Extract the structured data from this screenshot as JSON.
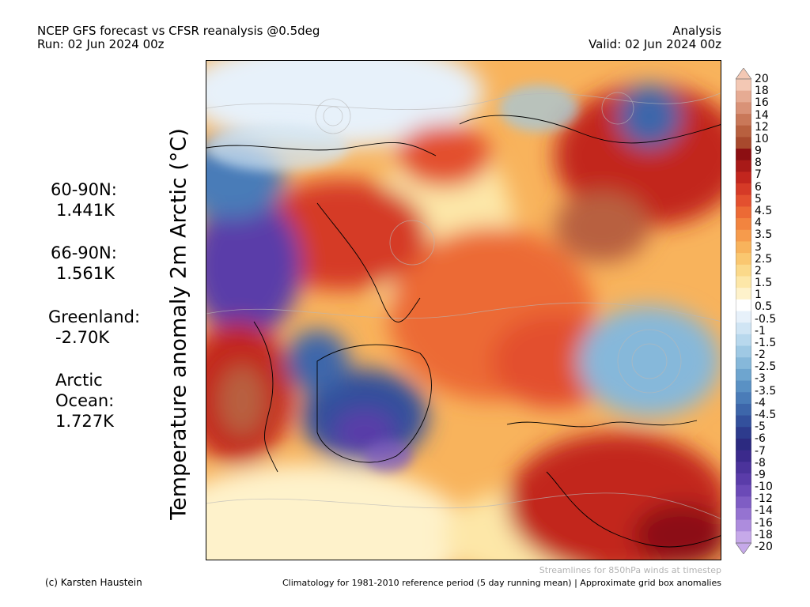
{
  "header": {
    "title_line1": "NCEP GFS forecast vs CFSR reanalysis @0.5deg",
    "title_line2": "Run: 02 Jun 2024 00z",
    "right_line1": "Analysis",
    "right_line2": "Valid: 02 Jun 2024 00z"
  },
  "ylabel": "Temperature anomaly 2m Arctic (°C)",
  "stats": [
    {
      "label": "60-90N:",
      "value": "1.441K"
    },
    {
      "label": "66-90N:",
      "value": "1.561K"
    },
    {
      "label": "Greenland:",
      "value": "-2.70K"
    },
    {
      "label": "Arctic Ocean:",
      "label_line1": "Arctic",
      "label_line2": "Ocean:",
      "value": "1.727K"
    }
  ],
  "colorbar": {
    "labels": [
      "20",
      "18",
      "16",
      "14",
      "12",
      "10",
      "9",
      "8",
      "7",
      "6",
      "5",
      "4.5",
      "4",
      "3.5",
      "3",
      "2.5",
      "2",
      "1.5",
      "1",
      "0.5",
      "-0.5",
      "-1",
      "-1.5",
      "-2",
      "-2.5",
      "-3",
      "-3.5",
      "-4",
      "-4.5",
      "-5",
      "-6",
      "-7",
      "-8",
      "-9",
      "-10",
      "-12",
      "-14",
      "-16",
      "-18",
      "-20"
    ],
    "colors": [
      "#f3c8b4",
      "#e6ab93",
      "#d99277",
      "#c97859",
      "#b8603f",
      "#a8492d",
      "#8c0f12",
      "#a81a18",
      "#c2261e",
      "#d53a27",
      "#e3502f",
      "#ec6a35",
      "#f2843f",
      "#f69b4c",
      "#f8b35c",
      "#fac770",
      "#fbd98a",
      "#fde7a8",
      "#fef2cb",
      "#ffffff",
      "#e7f1fa",
      "#d0e5f4",
      "#b8d8ed",
      "#9fc9e4",
      "#86b8da",
      "#6ea5cf",
      "#5a91c4",
      "#4a7cb8",
      "#3d66aa",
      "#33509c",
      "#2d3b8d",
      "#2c2a80",
      "#3b2a8c",
      "#4b339b",
      "#5a3ca9",
      "#6b4ab7",
      "#7f5dc4",
      "#9573d1",
      "#ad8cdd",
      "#c6a9e9"
    ]
  },
  "footer": {
    "credit": "(c) Karsten Haustein",
    "streamlines_note": "Streamlines for 850hPa winds at timestep",
    "climatology_note": "Climatology for 1981-2010 reference period (5 day running mean) | Approximate grid box anomalies"
  }
}
